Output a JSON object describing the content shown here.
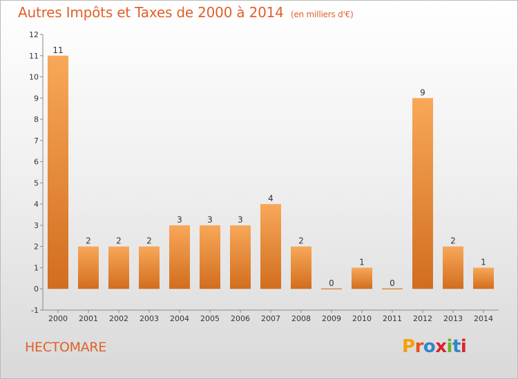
{
  "title": "Autres Impôts et Taxes de 2000 à 2014",
  "subtitle": "(en milliers d'€)",
  "commune": "HECTOMARE",
  "brand": {
    "text": "Proxiti",
    "letters": [
      "P",
      "r",
      "o",
      "x",
      "i",
      "t",
      "i"
    ],
    "colors": [
      "#f5a000",
      "#e8501c",
      "#2f86c9",
      "#d9232d",
      "#6ab233",
      "#2f86c9",
      "#d9232d"
    ]
  },
  "chart_data": {
    "type": "bar",
    "categories": [
      "2000",
      "2001",
      "2002",
      "2003",
      "2004",
      "2005",
      "2006",
      "2007",
      "2008",
      "2009",
      "2010",
      "2011",
      "2012",
      "2013",
      "2014"
    ],
    "values": [
      11,
      2,
      2,
      2,
      3,
      3,
      3,
      4,
      2,
      0,
      1,
      0,
      9,
      2,
      1
    ],
    "labels": [
      "11",
      "2",
      "2",
      "2",
      "3",
      "3",
      "3",
      "4",
      "2",
      "0",
      "1",
      "0",
      "9",
      "2",
      "1"
    ],
    "yticks": [
      "-1",
      "0",
      "1",
      "2",
      "3",
      "4",
      "5",
      "6",
      "7",
      "8",
      "9",
      "10",
      "11",
      "12"
    ],
    "ylim": [
      -1,
      12
    ],
    "title": "Autres Impôts et Taxes de 2000 à 2014",
    "xlabel": "",
    "ylabel": "",
    "bar_color_top": "#f8a859",
    "bar_color_bottom": "#d26d1e",
    "grid": false,
    "legend": "none"
  }
}
